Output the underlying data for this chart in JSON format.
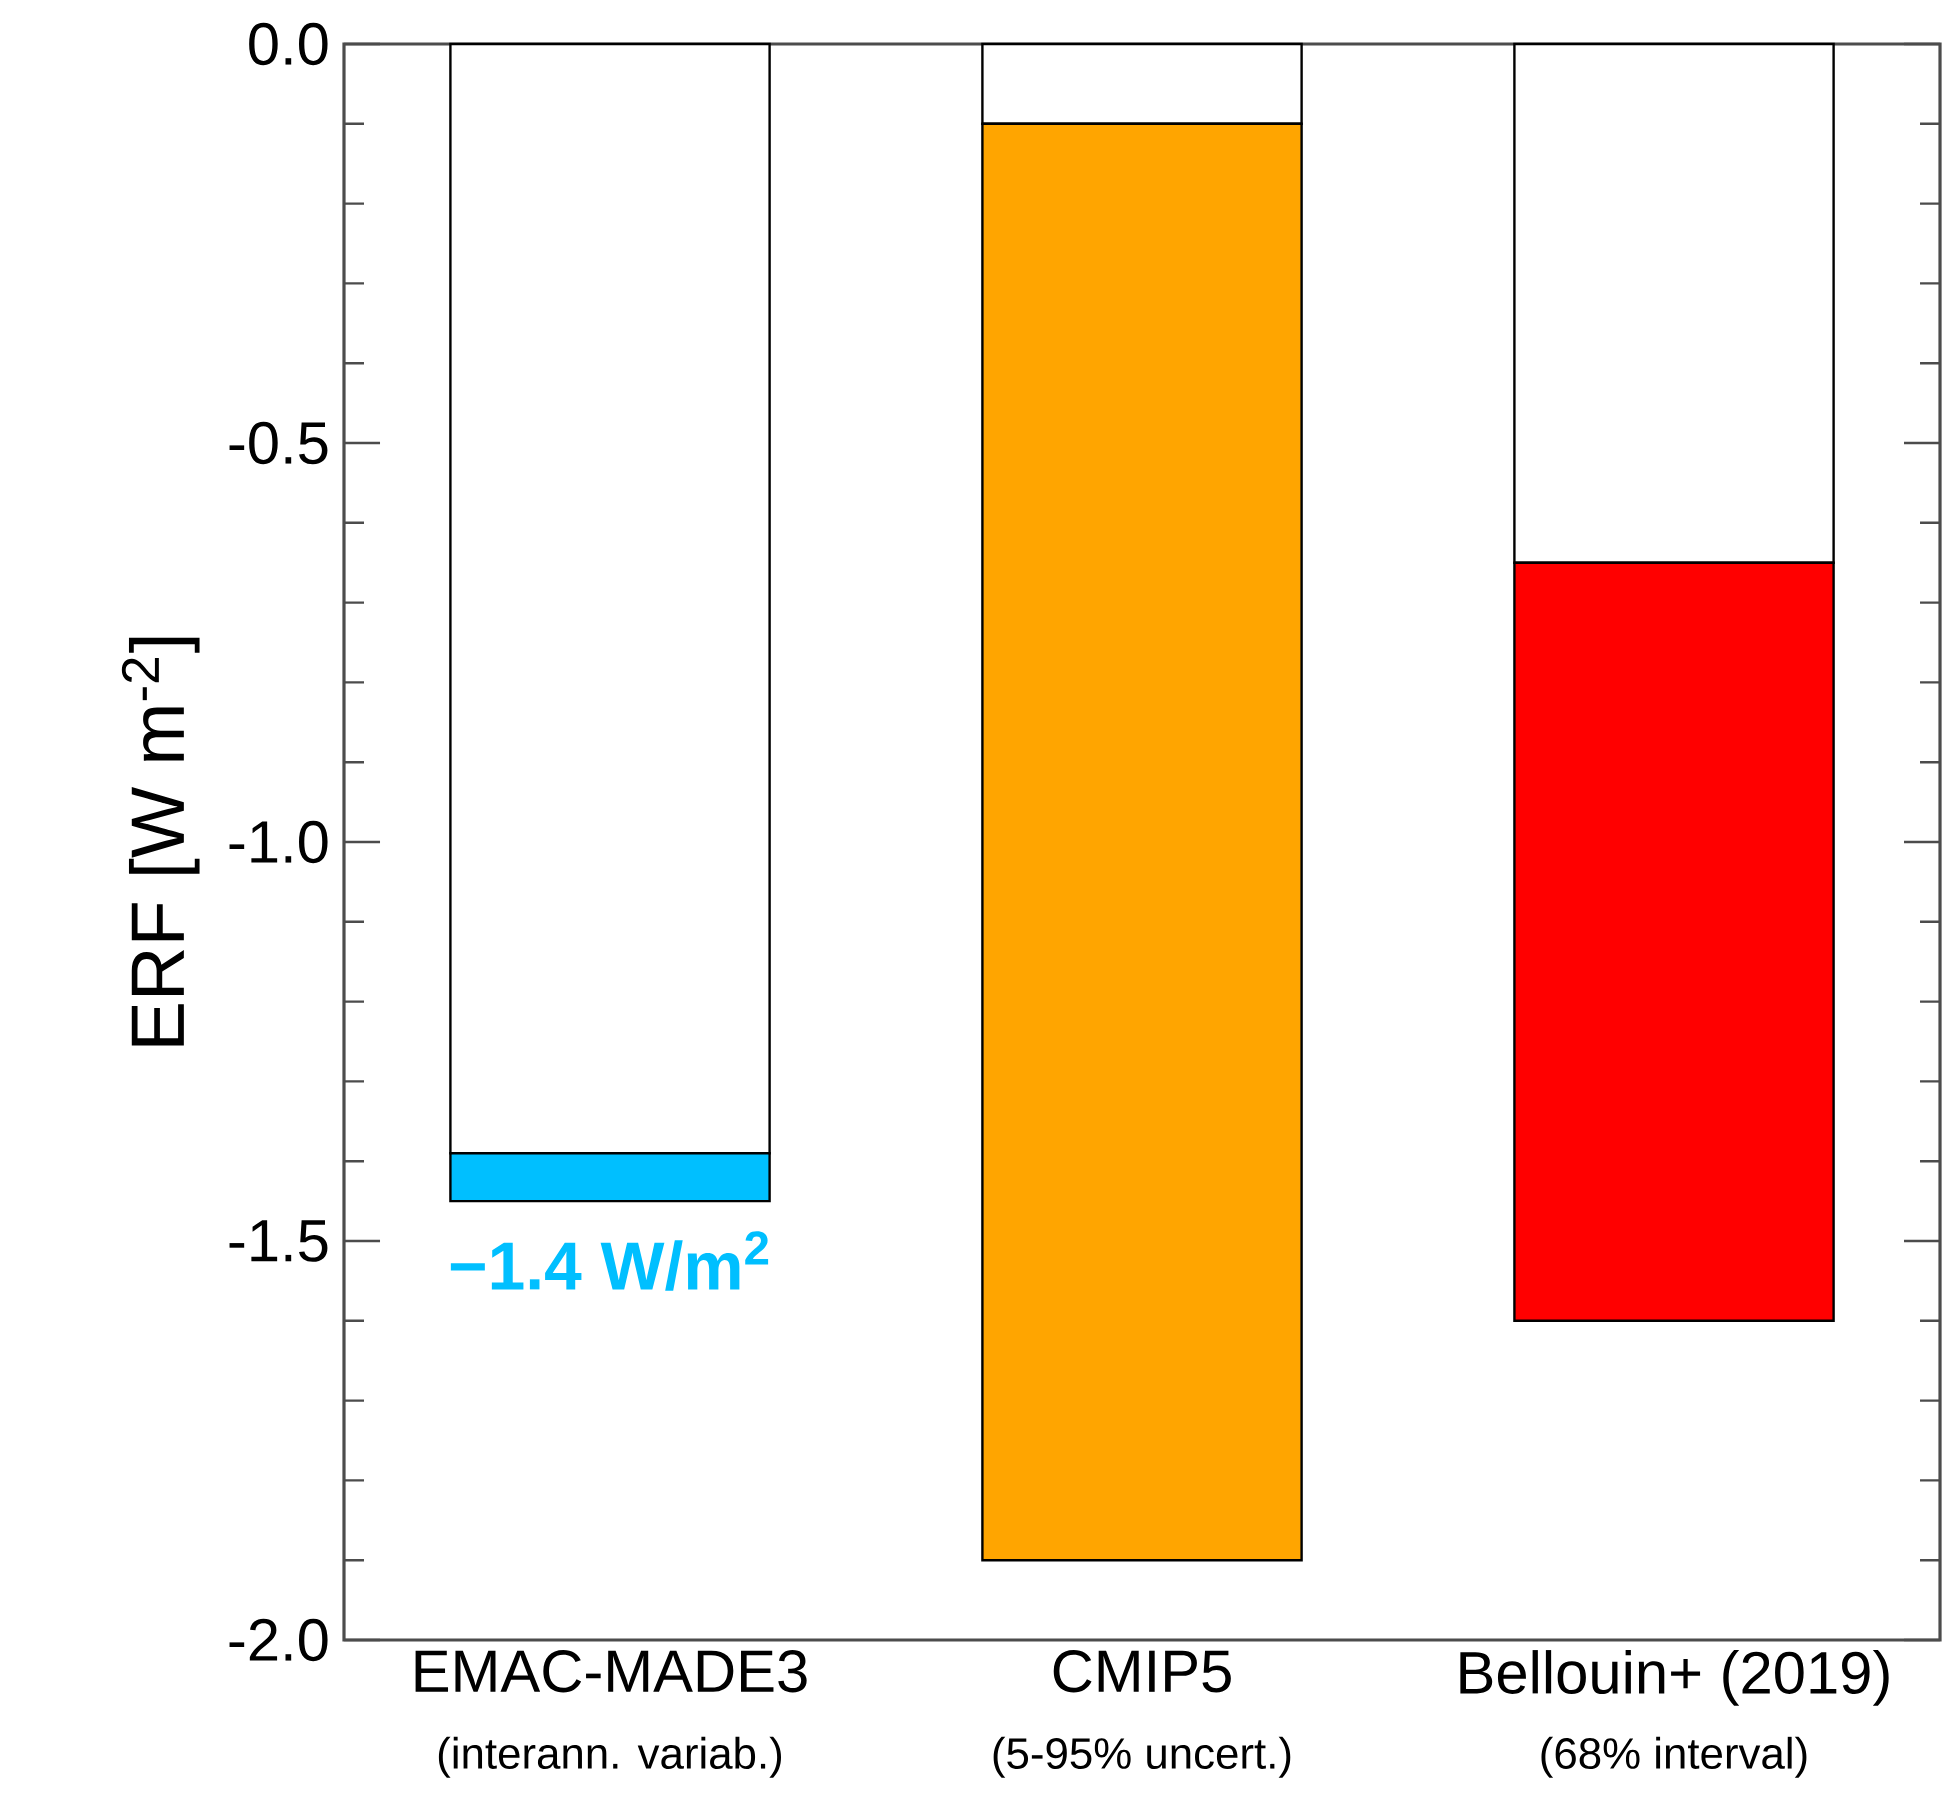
{
  "chart_data": {
    "type": "bar",
    "stacked": true,
    "categories": [
      "EMAC-MADE3",
      "CMIP5",
      "Bellouin+ (2019)"
    ],
    "series": [
      {
        "color": "#ffffff",
        "values": [
          -1.39,
          -0.1,
          -0.65
        ]
      },
      {
        "colors": [
          "#00bfff",
          "#ffa500",
          "#ff0000"
        ],
        "values": [
          -0.06,
          -1.8,
          -0.95
        ]
      }
    ],
    "ylabel": "ERF [W m$^{-2}$]",
    "ylim": [
      -2,
      0
    ],
    "yticks": [
      {
        "value": -2,
        "label": "-2.0"
      },
      {
        "value": -1.5,
        "label": "-1.5"
      },
      {
        "value": -1,
        "label": "-1.0"
      },
      {
        "value": -0.5,
        "label": "-0.5"
      },
      {
        "value": 0,
        "label": "0.0"
      }
    ],
    "annotations": [
      {
        "text": "−1.4 W/m$^{2}$",
        "x": "EMAC-MADE3",
        "y": -1.4
      },
      "(interann. variab.)",
      "(5-95% uncert.)",
      "(68% interval)"
    ],
    "grid": false
  }
}
